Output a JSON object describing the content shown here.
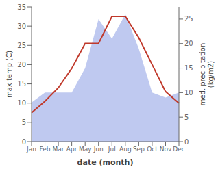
{
  "chart_data": {
    "type": "line",
    "xlabel": "date (month)",
    "ylabel": "max temp (C)",
    "y2label": "med. precipitation\n(kg/m2)",
    "categories": [
      "Jan",
      "Feb",
      "Mar",
      "Apr",
      "May",
      "Jun",
      "Jul",
      "Aug",
      "Sep",
      "Oct",
      "Nov",
      "Dec"
    ],
    "series": [
      {
        "type": "area",
        "axis": "y2",
        "color": "#bfc9f0",
        "values": [
          8,
          10,
          10,
          10,
          15,
          25,
          21,
          26,
          19,
          10,
          9,
          10
        ]
      },
      {
        "type": "line",
        "color": "#c0392b",
        "values": [
          7.5,
          10.5,
          14.0,
          19.0,
          25.5,
          25.5,
          32.5,
          32.5,
          27.0,
          20.0,
          13.0,
          10.0
        ]
      }
    ],
    "ylim": [
      0,
      35
    ],
    "yticks": [
      0,
      5,
      10,
      15,
      20,
      25,
      30,
      35
    ],
    "y2lim": [
      0,
      27.5
    ],
    "y2ticks": [
      0,
      5,
      10,
      15,
      20,
      25
    ],
    "grid": false
  }
}
